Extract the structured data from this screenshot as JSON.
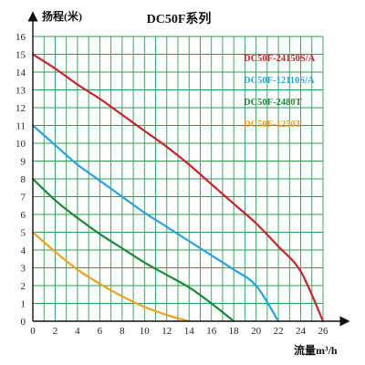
{
  "chart_data": {
    "type": "line",
    "title": "DC50F系列",
    "ylabel": "扬程(米)",
    "xlabel": "流量m³/h",
    "xlim": [
      0,
      26
    ],
    "ylim": [
      0,
      16
    ],
    "x_ticks": [
      "0",
      "2",
      "4",
      "6",
      "8",
      "10",
      "12",
      "14",
      "16",
      "18",
      "20",
      "22",
      "24",
      "26"
    ],
    "y_ticks": [
      "0",
      "1",
      "2",
      "3",
      "4",
      "5",
      "6",
      "7",
      "8",
      "9",
      "10",
      "11",
      "12",
      "13",
      "14",
      "15",
      "16"
    ],
    "grid": true,
    "grid_color": "#2e9e4f",
    "legend_position": "top-right",
    "series": [
      {
        "name": "DC50F-24150S/A",
        "color": "#cc1f2a",
        "points": [
          [
            0,
            15
          ],
          [
            2,
            14.2
          ],
          [
            4,
            13.3
          ],
          [
            6,
            12.5
          ],
          [
            8,
            11.6
          ],
          [
            10,
            10.7
          ],
          [
            12,
            9.8
          ],
          [
            14,
            8.8
          ],
          [
            16,
            7.7
          ],
          [
            18,
            6.6
          ],
          [
            20,
            5.5
          ],
          [
            22,
            4.2
          ],
          [
            24,
            2.8
          ],
          [
            26,
            0
          ]
        ]
      },
      {
        "name": "DC50F-12110S/A",
        "color": "#27a3dd",
        "points": [
          [
            0,
            11
          ],
          [
            2,
            9.9
          ],
          [
            4,
            8.8
          ],
          [
            6,
            7.9
          ],
          [
            8,
            7.0
          ],
          [
            10,
            6.1
          ],
          [
            12,
            5.3
          ],
          [
            14,
            4.5
          ],
          [
            16,
            3.7
          ],
          [
            18,
            2.9
          ],
          [
            20,
            2.0
          ],
          [
            22,
            0
          ]
        ]
      },
      {
        "name": "DC50F-2480T",
        "color": "#1a8a3a",
        "points": [
          [
            0,
            8
          ],
          [
            2,
            6.8
          ],
          [
            4,
            5.8
          ],
          [
            6,
            4.9
          ],
          [
            8,
            4.1
          ],
          [
            10,
            3.3
          ],
          [
            12,
            2.6
          ],
          [
            14,
            1.9
          ],
          [
            16,
            1.0
          ],
          [
            18,
            0
          ]
        ]
      },
      {
        "name": "DC50F-1250T",
        "color": "#f0a020",
        "points": [
          [
            0,
            5
          ],
          [
            2,
            3.9
          ],
          [
            4,
            2.9
          ],
          [
            6,
            2.1
          ],
          [
            8,
            1.4
          ],
          [
            10,
            0.8
          ],
          [
            12,
            0.35
          ],
          [
            14,
            0
          ]
        ]
      }
    ]
  }
}
